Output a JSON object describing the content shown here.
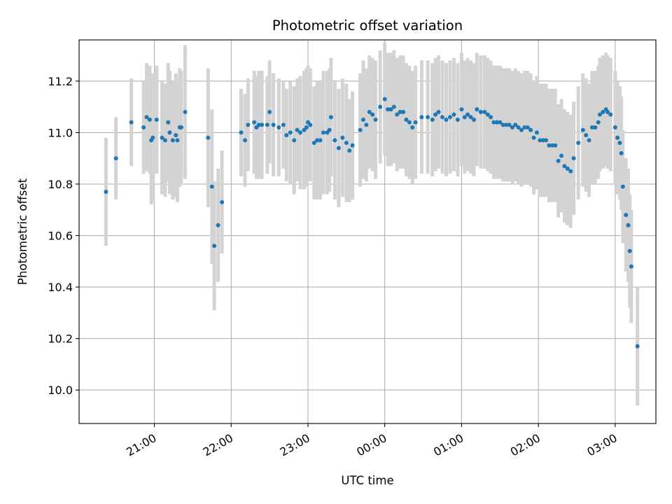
{
  "chart_data": {
    "type": "scatter",
    "title": "Photometric offset variation",
    "xlabel": "UTC time",
    "ylabel": "Photometric offset",
    "x_tick_labels": [
      "21:00",
      "22:00",
      "23:00",
      "00:00",
      "01:00",
      "02:00",
      "03:00"
    ],
    "y_tick_labels": [
      "10.0",
      "10.2",
      "10.4",
      "10.6",
      "10.8",
      "11.0",
      "11.2"
    ],
    "x_ticks_hours": [
      21,
      22,
      23,
      24,
      25,
      26,
      27
    ],
    "y_ticks": [
      10.0,
      10.2,
      10.4,
      10.6,
      10.8,
      11.0,
      11.2
    ],
    "xlim_hours": [
      20.02,
      27.53
    ],
    "ylim": [
      9.87,
      11.36
    ],
    "grid": true,
    "colors": {
      "point": "#1f77b4",
      "errorbar": "#d3d3d3",
      "grid": "#b0b0b0"
    },
    "series": [
      {
        "points": [
          [
            20.37,
            10.77,
            0.21
          ],
          [
            20.5,
            10.9,
            0.16
          ],
          [
            20.7,
            11.04,
            0.17
          ],
          [
            20.86,
            11.02,
            0.18
          ],
          [
            20.9,
            11.06,
            0.21
          ],
          [
            20.94,
            11.05,
            0.21
          ],
          [
            20.96,
            10.97,
            0.25
          ],
          [
            20.98,
            10.98,
            0.25
          ],
          [
            21.03,
            11.05,
            0.21
          ],
          [
            21.1,
            10.98,
            0.22
          ],
          [
            21.14,
            10.97,
            0.22
          ],
          [
            21.18,
            11.04,
            0.23
          ],
          [
            21.2,
            11.0,
            0.24
          ],
          [
            21.24,
            10.97,
            0.23
          ],
          [
            21.28,
            10.99,
            0.24
          ],
          [
            21.3,
            10.97,
            0.24
          ],
          [
            21.33,
            11.02,
            0.23
          ],
          [
            21.35,
            11.02,
            0.22
          ],
          [
            21.4,
            11.08,
            0.26
          ],
          [
            21.7,
            10.98,
            0.27
          ],
          [
            21.75,
            10.79,
            0.3
          ],
          [
            21.78,
            10.56,
            0.25
          ],
          [
            21.83,
            10.64,
            0.22
          ],
          [
            21.88,
            10.73,
            0.2
          ],
          [
            22.13,
            11.0,
            0.17
          ],
          [
            22.18,
            10.97,
            0.18
          ],
          [
            22.22,
            11.03,
            0.18
          ],
          [
            22.3,
            11.04,
            0.2
          ],
          [
            22.33,
            11.02,
            0.2
          ],
          [
            22.36,
            11.03,
            0.21
          ],
          [
            22.4,
            11.03,
            0.21
          ],
          [
            22.47,
            11.03,
            0.19
          ],
          [
            22.5,
            11.08,
            0.2
          ],
          [
            22.55,
            11.03,
            0.2
          ],
          [
            22.62,
            11.02,
            0.19
          ],
          [
            22.68,
            11.03,
            0.17
          ],
          [
            22.72,
            10.99,
            0.18
          ],
          [
            22.77,
            11.0,
            0.2
          ],
          [
            22.82,
            10.97,
            0.21
          ],
          [
            22.86,
            11.01,
            0.2
          ],
          [
            22.9,
            11.0,
            0.22
          ],
          [
            22.95,
            11.01,
            0.23
          ],
          [
            22.98,
            11.02,
            0.23
          ],
          [
            23.0,
            11.04,
            0.22
          ],
          [
            23.03,
            11.03,
            0.22
          ],
          [
            23.08,
            10.96,
            0.22
          ],
          [
            23.12,
            10.97,
            0.23
          ],
          [
            23.16,
            10.97,
            0.23
          ],
          [
            23.2,
            11.0,
            0.24
          ],
          [
            23.25,
            11.0,
            0.24
          ],
          [
            23.28,
            11.01,
            0.24
          ],
          [
            23.3,
            11.06,
            0.23
          ],
          [
            23.35,
            10.97,
            0.23
          ],
          [
            23.4,
            10.94,
            0.23
          ],
          [
            23.45,
            10.98,
            0.23
          ],
          [
            23.5,
            10.96,
            0.23
          ],
          [
            23.54,
            10.93,
            0.2
          ],
          [
            23.58,
            10.95,
            0.21
          ],
          [
            23.68,
            11.01,
            0.22
          ],
          [
            23.72,
            11.05,
            0.23
          ],
          [
            23.76,
            11.03,
            0.22
          ],
          [
            23.8,
            11.08,
            0.22
          ],
          [
            23.84,
            11.07,
            0.22
          ],
          [
            23.88,
            11.05,
            0.23
          ],
          [
            23.94,
            11.1,
            0.22
          ],
          [
            24.0,
            11.13,
            0.22
          ],
          [
            24.04,
            11.09,
            0.22
          ],
          [
            24.08,
            11.09,
            0.22
          ],
          [
            24.12,
            11.1,
            0.22
          ],
          [
            24.16,
            11.07,
            0.22
          ],
          [
            24.2,
            11.08,
            0.22
          ],
          [
            24.24,
            11.08,
            0.22
          ],
          [
            24.28,
            11.05,
            0.22
          ],
          [
            24.32,
            11.04,
            0.22
          ],
          [
            24.36,
            11.02,
            0.22
          ],
          [
            24.4,
            11.04,
            0.22
          ],
          [
            24.48,
            11.06,
            0.22
          ],
          [
            24.56,
            11.06,
            0.22
          ],
          [
            24.62,
            11.05,
            0.22
          ],
          [
            24.66,
            11.07,
            0.22
          ],
          [
            24.7,
            11.08,
            0.22
          ],
          [
            24.75,
            11.06,
            0.22
          ],
          [
            24.8,
            11.05,
            0.22
          ],
          [
            24.85,
            11.06,
            0.22
          ],
          [
            24.9,
            11.07,
            0.22
          ],
          [
            24.95,
            11.05,
            0.22
          ],
          [
            25.0,
            11.09,
            0.22
          ],
          [
            25.04,
            11.06,
            0.22
          ],
          [
            25.08,
            11.07,
            0.22
          ],
          [
            25.12,
            11.06,
            0.22
          ],
          [
            25.16,
            11.05,
            0.22
          ],
          [
            25.2,
            11.09,
            0.22
          ],
          [
            25.25,
            11.08,
            0.22
          ],
          [
            25.3,
            11.08,
            0.22
          ],
          [
            25.34,
            11.07,
            0.22
          ],
          [
            25.38,
            11.06,
            0.22
          ],
          [
            25.42,
            11.04,
            0.22
          ],
          [
            25.46,
            11.04,
            0.22
          ],
          [
            25.5,
            11.04,
            0.22
          ],
          [
            25.54,
            11.03,
            0.22
          ],
          [
            25.58,
            11.03,
            0.22
          ],
          [
            25.62,
            11.03,
            0.22
          ],
          [
            25.66,
            11.02,
            0.22
          ],
          [
            25.7,
            11.03,
            0.22
          ],
          [
            25.74,
            11.02,
            0.22
          ],
          [
            25.78,
            11.01,
            0.22
          ],
          [
            25.82,
            11.02,
            0.22
          ],
          [
            25.86,
            11.02,
            0.22
          ],
          [
            25.9,
            11.01,
            0.22
          ],
          [
            25.94,
            10.98,
            0.22
          ],
          [
            25.98,
            11.0,
            0.22
          ],
          [
            26.02,
            10.97,
            0.22
          ],
          [
            26.06,
            10.97,
            0.22
          ],
          [
            26.1,
            10.97,
            0.22
          ],
          [
            26.14,
            10.95,
            0.22
          ],
          [
            26.18,
            10.95,
            0.22
          ],
          [
            26.22,
            10.95,
            0.22
          ],
          [
            26.26,
            10.89,
            0.22
          ],
          [
            26.3,
            10.91,
            0.22
          ],
          [
            26.34,
            10.87,
            0.22
          ],
          [
            26.38,
            10.86,
            0.22
          ],
          [
            26.42,
            10.85,
            0.22
          ],
          [
            26.46,
            10.9,
            0.22
          ],
          [
            26.52,
            10.96,
            0.22
          ],
          [
            26.58,
            11.01,
            0.22
          ],
          [
            26.62,
            10.99,
            0.22
          ],
          [
            26.66,
            10.97,
            0.22
          ],
          [
            26.7,
            11.02,
            0.22
          ],
          [
            26.74,
            11.02,
            0.22
          ],
          [
            26.78,
            11.04,
            0.22
          ],
          [
            26.8,
            11.07,
            0.22
          ],
          [
            26.84,
            11.08,
            0.22
          ],
          [
            26.88,
            11.09,
            0.22
          ],
          [
            26.9,
            11.08,
            0.22
          ],
          [
            26.94,
            11.07,
            0.22
          ],
          [
            27.0,
            11.02,
            0.22
          ],
          [
            27.03,
            10.98,
            0.22
          ],
          [
            27.06,
            10.96,
            0.22
          ],
          [
            27.08,
            10.92,
            0.22
          ],
          [
            27.1,
            10.79,
            0.22
          ],
          [
            27.14,
            10.68,
            0.22
          ],
          [
            27.17,
            10.64,
            0.22
          ],
          [
            27.19,
            10.54,
            0.22
          ],
          [
            27.21,
            10.48,
            0.22
          ],
          [
            27.29,
            10.17,
            0.23
          ]
        ]
      }
    ]
  }
}
